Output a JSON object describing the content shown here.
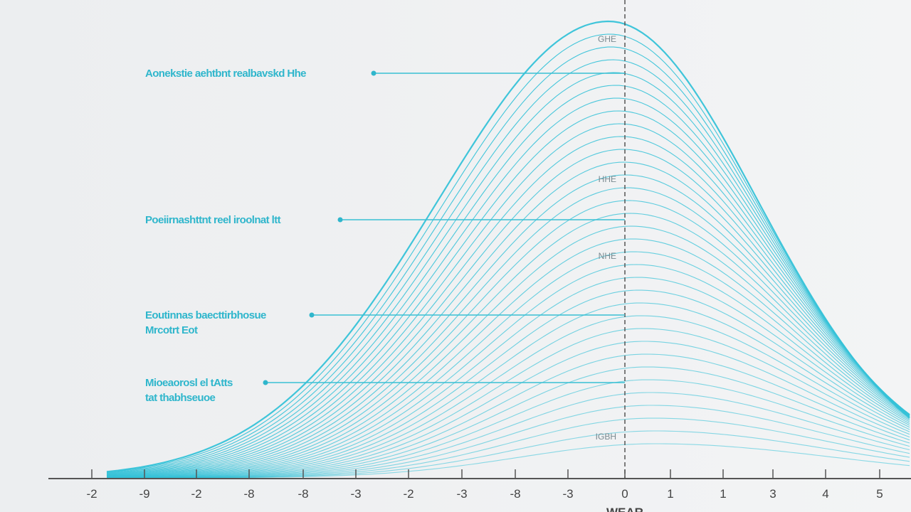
{
  "annotations": [
    {
      "lines": [
        "Aonekstie aehtbnt realbavskd Hhe"
      ]
    },
    {
      "lines": [
        "Poeiirnashttnt reel iroolnat ltt"
      ]
    },
    {
      "lines": [
        "Eoutinnas baecttirbhosue",
        "Mrcotrt Eot"
      ]
    },
    {
      "lines": [
        "Mioeaorosl el tAtts",
        "tat thabhseuoe"
      ]
    }
  ],
  "axis_labels": [
    "-2",
    "-9",
    "-2",
    "-8",
    "-8",
    "-3",
    "-2",
    "-3",
    "-8",
    "-3",
    "0",
    "1",
    "1",
    "3",
    "4",
    "5"
  ],
  "center_labels": [
    "GHE",
    "HHE",
    "NHE",
    "IGBH"
  ],
  "axis_title": "WEAR"
}
